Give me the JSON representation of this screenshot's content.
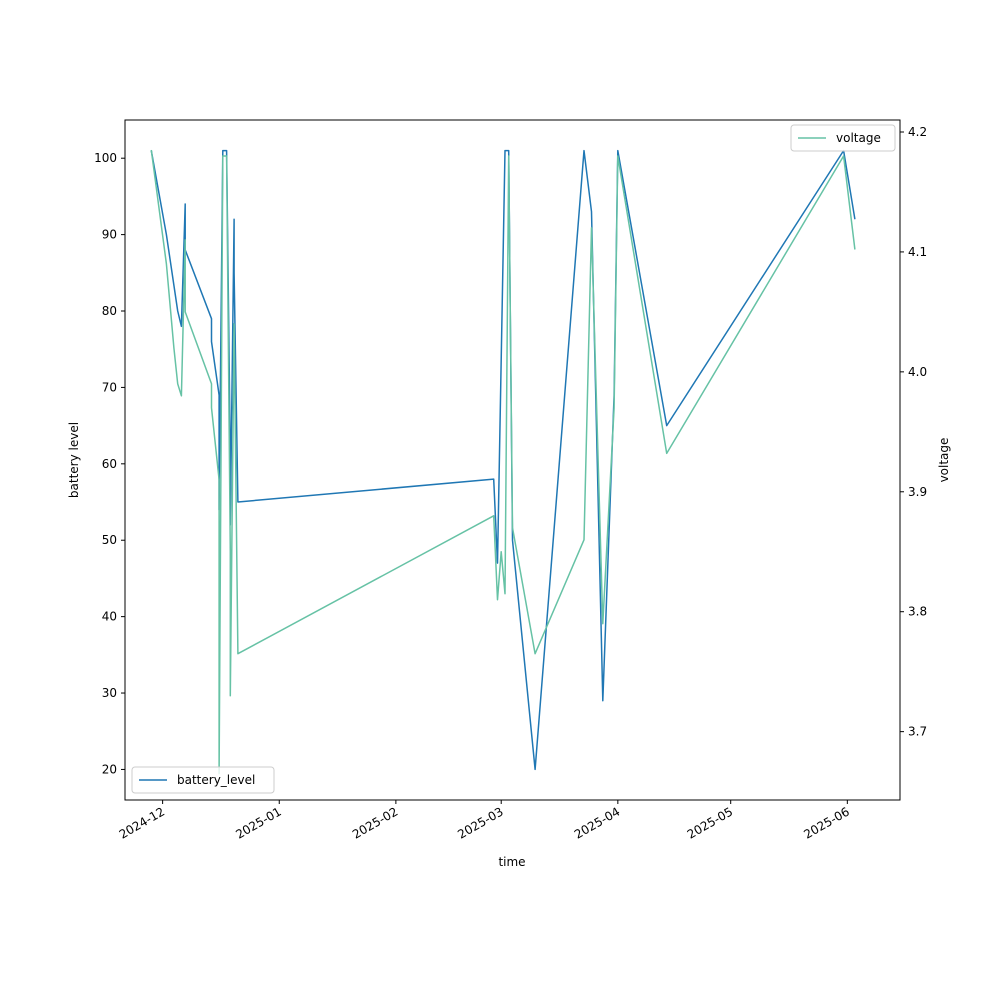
{
  "chart_data": {
    "type": "line",
    "xlabel": "time",
    "ylabel_left": "battery level",
    "ylabel_right": "voltage",
    "x_ticks": [
      "2024-12",
      "2025-01",
      "2025-02",
      "2025-03",
      "2025-04",
      "2025-05",
      "2025-06"
    ],
    "y_left_ticks": [
      20,
      30,
      40,
      50,
      60,
      70,
      80,
      90,
      100
    ],
    "y_right_ticks": [
      3.7,
      3.8,
      3.9,
      4.0,
      4.1,
      4.2
    ],
    "xlim": [
      "2024-11-21",
      "2025-06-15"
    ],
    "y_left_lim": [
      16,
      105
    ],
    "y_right_lim": [
      3.643,
      4.21
    ],
    "grid": false,
    "series": [
      {
        "name": "battery_level",
        "axis": "left",
        "color": "#1f77b4",
        "legend_position": "lower-left",
        "points": [
          [
            "2024-11-28",
            101
          ],
          [
            "2024-12-02",
            90
          ],
          [
            "2024-12-05",
            80
          ],
          [
            "2024-12-06",
            78
          ],
          [
            "2024-12-07",
            94
          ],
          [
            "2024-12-07",
            88
          ],
          [
            "2024-12-14",
            79
          ],
          [
            "2024-12-14",
            76
          ],
          [
            "2024-12-16",
            69
          ],
          [
            "2024-12-16",
            54
          ],
          [
            "2024-12-17",
            101
          ],
          [
            "2024-12-18",
            101
          ],
          [
            "2024-12-19",
            61
          ],
          [
            "2024-12-19",
            52
          ],
          [
            "2024-12-20",
            92
          ],
          [
            "2024-12-20",
            85
          ],
          [
            "2024-12-21",
            55
          ],
          [
            "2025-02-27",
            58
          ],
          [
            "2025-02-28",
            47
          ],
          [
            "2025-03-02",
            101
          ],
          [
            "2025-03-03",
            101
          ],
          [
            "2025-03-04",
            50
          ],
          [
            "2025-03-10",
            20
          ],
          [
            "2025-03-23",
            101
          ],
          [
            "2025-03-25",
            93
          ],
          [
            "2025-03-28",
            29
          ],
          [
            "2025-03-31",
            69
          ],
          [
            "2025-04-01",
            101
          ],
          [
            "2025-04-14",
            65
          ],
          [
            "2025-05-31",
            101
          ],
          [
            "2025-06-03",
            92
          ]
        ]
      },
      {
        "name": "voltage",
        "axis": "right",
        "color": "#66c2a5",
        "legend_position": "upper-right",
        "points": [
          [
            "2024-11-28",
            4.185
          ],
          [
            "2024-12-02",
            4.09
          ],
          [
            "2024-12-04",
            4.02
          ],
          [
            "2024-12-05",
            3.99
          ],
          [
            "2024-12-06",
            3.98
          ],
          [
            "2024-12-07",
            4.11
          ],
          [
            "2024-12-07",
            4.05
          ],
          [
            "2024-12-14",
            3.99
          ],
          [
            "2024-12-14",
            3.97
          ],
          [
            "2024-12-16",
            3.91
          ],
          [
            "2024-12-16",
            3.665
          ],
          [
            "2024-12-17",
            4.18
          ],
          [
            "2024-12-18",
            4.18
          ],
          [
            "2024-12-19",
            3.85
          ],
          [
            "2024-12-19",
            3.73
          ],
          [
            "2024-12-20",
            4.04
          ],
          [
            "2024-12-21",
            3.765
          ],
          [
            "2025-02-27",
            3.88
          ],
          [
            "2025-02-28",
            3.81
          ],
          [
            "2025-03-01",
            3.85
          ],
          [
            "2025-03-02",
            3.815
          ],
          [
            "2025-03-03",
            4.18
          ],
          [
            "2025-03-04",
            3.87
          ],
          [
            "2025-03-10",
            3.765
          ],
          [
            "2025-03-23",
            3.86
          ],
          [
            "2025-03-25",
            4.12
          ],
          [
            "2025-03-28",
            3.79
          ],
          [
            "2025-03-31",
            3.97
          ],
          [
            "2025-04-01",
            4.18
          ],
          [
            "2025-04-14",
            3.932
          ],
          [
            "2025-05-31",
            4.18
          ],
          [
            "2025-06-03",
            4.102
          ]
        ]
      }
    ]
  }
}
